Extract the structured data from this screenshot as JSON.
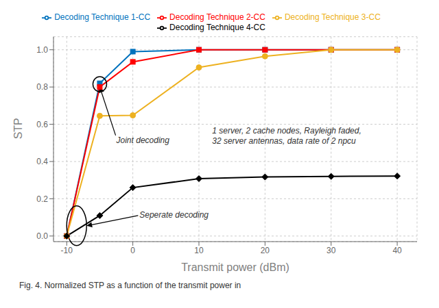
{
  "chart_data": {
    "type": "line",
    "x_label": "Transmit power (dBm)",
    "y_label": "STP",
    "x": [
      -10,
      -5,
      0,
      10,
      20,
      30,
      40
    ],
    "series": [
      {
        "name": "Decoding Technique 1-CC",
        "color": "#0072BD",
        "marker": "square",
        "values": [
          0.0,
          0.82,
          0.99,
          1.0,
          1.0,
          1.0,
          1.0
        ]
      },
      {
        "name": "Decoding Technique 2-CC",
        "color": "#FF0000",
        "marker": "square",
        "values": [
          0.0,
          0.8,
          0.935,
          1.0,
          1.0,
          1.0,
          1.0
        ]
      },
      {
        "name": "Decoding Technique 3-CC",
        "color": "#EDB120",
        "marker": "circle",
        "values": [
          0.0,
          0.645,
          0.648,
          0.905,
          0.965,
          1.0,
          1.0
        ]
      },
      {
        "name": "Decoding Technique 4-CC",
        "color": "#000000",
        "marker": "diamond",
        "values": [
          0.0,
          0.11,
          0.26,
          0.308,
          0.317,
          0.32,
          0.322
        ]
      }
    ],
    "xlim": [
      -12,
      43
    ],
    "ylim": [
      -0.03,
      1.07
    ],
    "xticks": [
      -10,
      0,
      10,
      20,
      30,
      40
    ],
    "yticks": [
      {
        "value": 0,
        "label": "0.0"
      },
      0.2,
      0.4,
      0.6,
      0.8,
      {
        "value": 1.0,
        "label": "1.0"
      }
    ],
    "grid": true,
    "legend": "top",
    "annotations": [
      "Joint decoding",
      "Seperate decoding",
      "1 server, 2 cache nodes, Rayleigh faded,\n32 server antennas, data rate of 2 npcu",
      "Fig. 4. Normalized STP as a function of the transmit power in"
    ]
  }
}
